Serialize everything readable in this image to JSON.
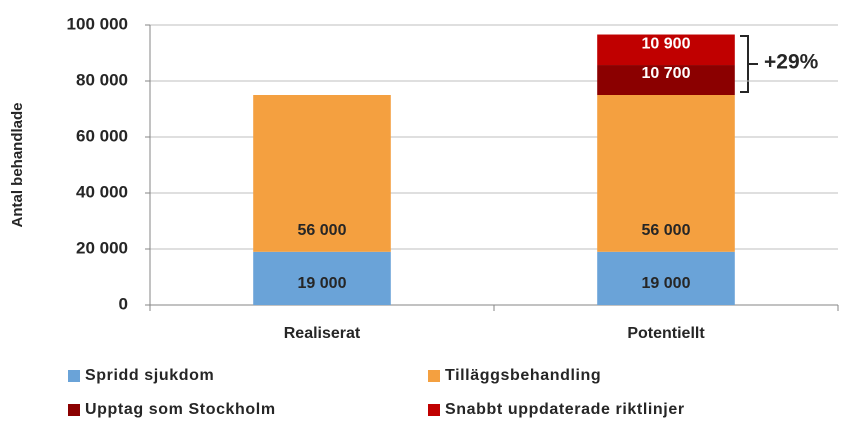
{
  "chart_data": {
    "type": "stacked_bar",
    "y_label": "Antal behandlade",
    "categories": [
      "Realiserat",
      "Potentiellt"
    ],
    "series": [
      {
        "name": "Spridd sjukdom",
        "color": "#6aa3d8",
        "values": [
          19000,
          19000
        ],
        "value_labels": [
          "19 000",
          "19 000"
        ]
      },
      {
        "name": "Tilläggsbehandling",
        "color": "#f4a040",
        "values": [
          56000,
          56000
        ],
        "value_labels": [
          "56 000",
          "56 000"
        ]
      },
      {
        "name": "Upptag som Stockholm",
        "color": "#8b0000",
        "values": [
          null,
          10700
        ],
        "value_labels": [
          null,
          "10 700"
        ]
      },
      {
        "name": "Snabbt uppdaterade riktlinjer",
        "color": "#c00000",
        "values": [
          null,
          10900
        ],
        "value_labels": [
          null,
          "10 900"
        ]
      }
    ],
    "annotation": "+29%",
    "ylim": [
      0,
      100000
    ],
    "yticks": [
      0,
      {
        "value": 20000,
        "label": "20 000"
      },
      {
        "value": 40000,
        "label": "40 000"
      },
      {
        "value": 60000,
        "label": "60 000"
      },
      {
        "value": 80000,
        "label": "80 000"
      },
      {
        "value": 100000,
        "label": "100 000"
      }
    ],
    "grid": true,
    "legend": "bottom"
  }
}
